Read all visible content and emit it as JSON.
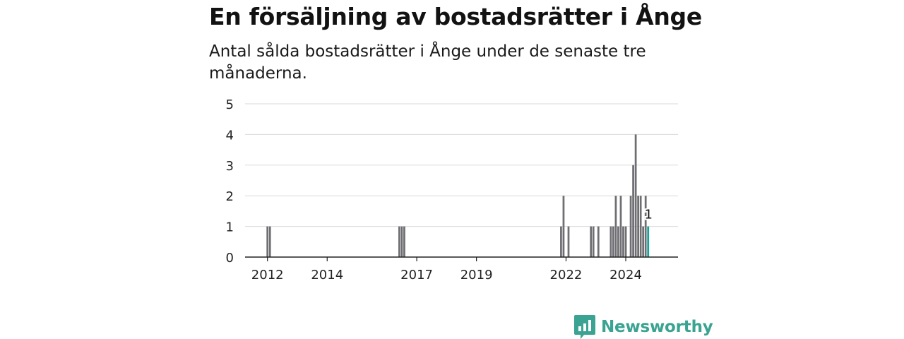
{
  "title": "En försäljning av bostadsrätter i Ånge",
  "subtitle": "Antal sålda bostadsrätter i Ånge under de senaste tre månaderna.",
  "brand": {
    "name": "Newsworthy",
    "logo_icon": "bar-chart-speech-bubble-icon"
  },
  "colors": {
    "bar": "#6e6e73",
    "highlight": "#12a39a",
    "grid": "#d9d9d9",
    "axis": "#222222",
    "brand": "#3aa391"
  },
  "chart_data": {
    "type": "bar",
    "ylim": [
      0,
      5
    ],
    "yticks": [
      0,
      1,
      2,
      3,
      4,
      5
    ],
    "xticks": [
      {
        "label": "2012",
        "x": "2012-01"
      },
      {
        "label": "2014",
        "x": "2014-01"
      },
      {
        "label": "2017",
        "x": "2017-01"
      },
      {
        "label": "2019",
        "x": "2019-01"
      },
      {
        "label": "2022",
        "x": "2022-01"
      },
      {
        "label": "2024",
        "x": "2024-01"
      }
    ],
    "grid": true,
    "x_range": [
      "2011-04",
      "2025-10"
    ],
    "series": [
      {
        "values": [
          {
            "x": "2012-01",
            "y": 1
          },
          {
            "x": "2012-02",
            "y": 1
          },
          {
            "x": "2016-06",
            "y": 1
          },
          {
            "x": "2016-07",
            "y": 1
          },
          {
            "x": "2016-08",
            "y": 1
          },
          {
            "x": "2021-11",
            "y": 1
          },
          {
            "x": "2021-12",
            "y": 2
          },
          {
            "x": "2022-02",
            "y": 1
          },
          {
            "x": "2022-11",
            "y": 1
          },
          {
            "x": "2022-12",
            "y": 1
          },
          {
            "x": "2023-02",
            "y": 1
          },
          {
            "x": "2023-07",
            "y": 1
          },
          {
            "x": "2023-08",
            "y": 1
          },
          {
            "x": "2023-09",
            "y": 2
          },
          {
            "x": "2023-10",
            "y": 1
          },
          {
            "x": "2023-11",
            "y": 2
          },
          {
            "x": "2023-12",
            "y": 1
          },
          {
            "x": "2024-01",
            "y": 1
          },
          {
            "x": "2024-03",
            "y": 2
          },
          {
            "x": "2024-04",
            "y": 3
          },
          {
            "x": "2024-05",
            "y": 4
          },
          {
            "x": "2024-06",
            "y": 2
          },
          {
            "x": "2024-07",
            "y": 2
          },
          {
            "x": "2024-08",
            "y": 1
          },
          {
            "x": "2024-09",
            "y": 2
          },
          {
            "x": "2024-10",
            "y": 1
          }
        ]
      }
    ],
    "highlight": {
      "x": "2024-10",
      "y": 1,
      "label": "1"
    }
  }
}
